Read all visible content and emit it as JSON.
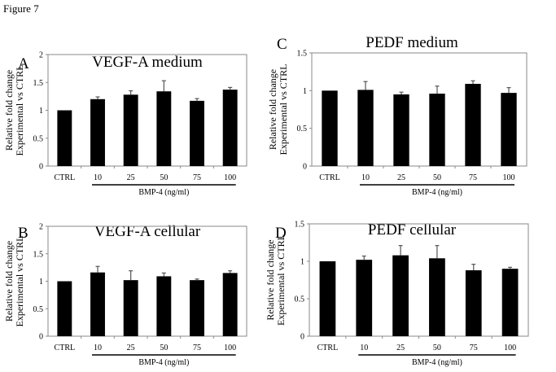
{
  "figure_title": "Figure 7",
  "chart_data": [
    {
      "type": "bar",
      "panel_letter": "A",
      "title": "VEGF-A medium",
      "ylabel_lines": [
        "Relative fold change",
        "Experimental vs CTRL"
      ],
      "xlabel": "BMP-4 (ng/ml)",
      "categories": [
        "CTRL",
        "10",
        "25",
        "50",
        "75",
        "100"
      ],
      "values": [
        1.0,
        1.2,
        1.28,
        1.34,
        1.17,
        1.37
      ],
      "error_upper": [
        1.0,
        1.24,
        1.35,
        1.53,
        1.21,
        1.41
      ],
      "ylim": [
        0,
        2
      ],
      "yticks": [
        0,
        0.5,
        1,
        1.5,
        2
      ],
      "ytick_labels": [
        "0",
        "0.5",
        "1",
        "1.5",
        "2"
      ],
      "grid": false,
      "bar_color": "#000000"
    },
    {
      "type": "bar",
      "panel_letter": "C",
      "title": "PEDF medium",
      "ylabel_lines": [
        "Relative fold change",
        "Experimental vs CTRL"
      ],
      "xlabel": "BMP-4 (ng/ml)",
      "categories": [
        "CTRL",
        "10",
        "25",
        "50",
        "75",
        "100"
      ],
      "values": [
        1.0,
        1.01,
        0.95,
        0.96,
        1.09,
        0.97
      ],
      "error_upper": [
        1.0,
        1.12,
        0.98,
        1.06,
        1.13,
        1.04
      ],
      "ylim": [
        0,
        1.5
      ],
      "yticks": [
        0,
        0.5,
        1,
        1.5
      ],
      "ytick_labels": [
        "0",
        "0.5",
        "1",
        "1.5"
      ],
      "grid": false,
      "bar_color": "#000000"
    },
    {
      "type": "bar",
      "panel_letter": "B",
      "title": "VEGF-A cellular",
      "ylabel_lines": [
        "Relative fold change",
        "Experimental vs CTRL"
      ],
      "xlabel": "BMP-4 (ng/ml)",
      "categories": [
        "CTRL",
        "10",
        "25",
        "50",
        "75",
        "100"
      ],
      "values": [
        1.0,
        1.16,
        1.02,
        1.09,
        1.02,
        1.15
      ],
      "error_upper": [
        1.0,
        1.27,
        1.19,
        1.15,
        1.04,
        1.19
      ],
      "ylim": [
        0,
        2
      ],
      "yticks": [
        0,
        0.5,
        1,
        1.5,
        2
      ],
      "ytick_labels": [
        "0",
        "0.5",
        "1",
        "1.5",
        "2"
      ],
      "grid": false,
      "bar_color": "#000000"
    },
    {
      "type": "bar",
      "panel_letter": "D",
      "title": "PEDF cellular",
      "ylabel_lines": [
        "Relative fold change",
        "Experimental vs CTRL"
      ],
      "xlabel": "BMP-4 (ng/ml)",
      "categories": [
        "CTRL",
        "10",
        "25",
        "50",
        "75",
        "100"
      ],
      "values": [
        1.0,
        1.02,
        1.08,
        1.04,
        0.88,
        0.9
      ],
      "error_upper": [
        1.0,
        1.07,
        1.21,
        1.21,
        0.96,
        0.92
      ],
      "ylim": [
        0,
        1.5
      ],
      "yticks": [
        0,
        0.5,
        1,
        1.5
      ],
      "ytick_labels": [
        "0",
        "0.5",
        "1",
        "1.5"
      ],
      "grid": false,
      "bar_color": "#000000"
    }
  ]
}
